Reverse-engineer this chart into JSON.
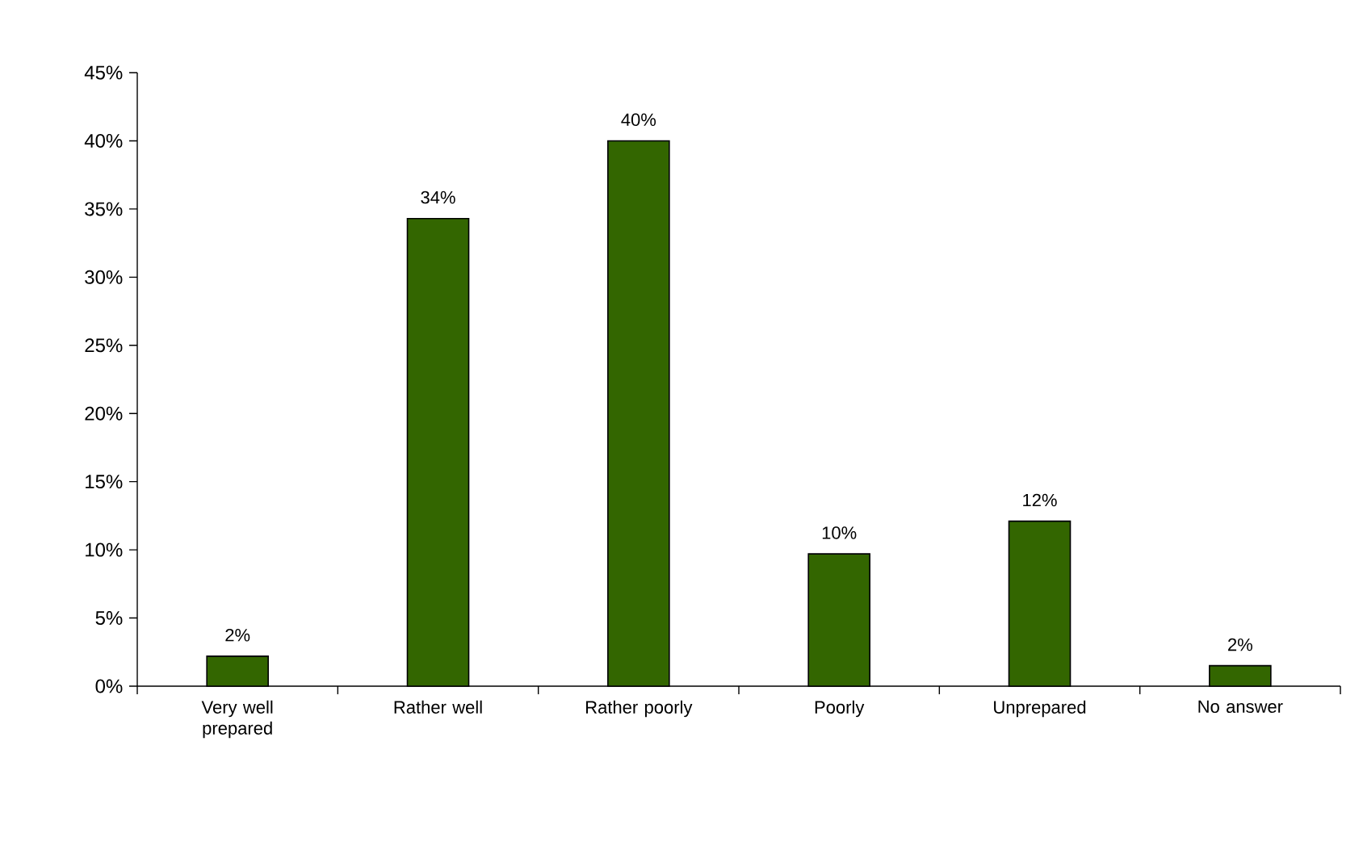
{
  "chart_data": {
    "type": "bar",
    "categories": [
      "Very well prepared",
      "Rather well",
      "Rather poorly",
      "Poorly",
      "Unprepared",
      "No answer"
    ],
    "values": [
      2.2,
      34.3,
      40,
      9.7,
      12.1,
      1.5
    ],
    "value_labels": [
      "2%",
      "34%",
      "40%",
      "10%",
      "12%",
      "2%"
    ],
    "color": "#336600",
    "ylim": [
      0,
      45
    ],
    "yticks": [
      {
        "value": 0,
        "label": "0%"
      },
      {
        "value": 5,
        "label": "5%"
      },
      {
        "value": 10,
        "label": "10%"
      },
      {
        "value": 15,
        "label": "15%"
      },
      {
        "value": 20,
        "label": "20%"
      },
      {
        "value": 25,
        "label": "25%"
      },
      {
        "value": 30,
        "label": "30%"
      },
      {
        "value": 35,
        "label": "35%"
      },
      {
        "value": 40,
        "label": "40%"
      },
      {
        "value": 45,
        "label": "45%"
      }
    ]
  }
}
